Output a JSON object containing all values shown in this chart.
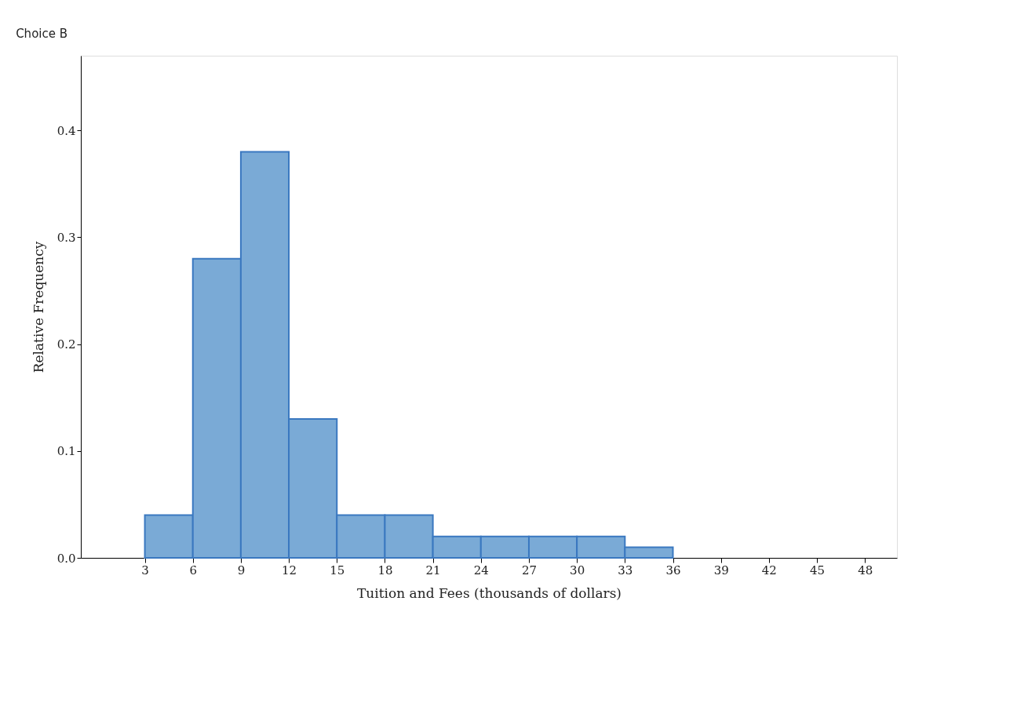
{
  "chart_data": {
    "type": "histogram",
    "title": "Choice B",
    "xlabel": "Tuition and Fees (thousands of dollars)",
    "ylabel": "Relative Frequency",
    "bins": [
      3,
      6,
      9,
      12,
      15,
      18,
      21,
      24,
      27,
      30,
      33,
      36
    ],
    "values": [
      0.04,
      0.28,
      0.38,
      0.13,
      0.04,
      0.04,
      0.02,
      0.02,
      0.02,
      0.02,
      0.01
    ],
    "color": "#7aaad6",
    "xlim": [
      -1,
      50
    ],
    "xticks": [
      3,
      6,
      9,
      12,
      15,
      18,
      21,
      24,
      27,
      30,
      33,
      36,
      39,
      42,
      45,
      48
    ],
    "ylim": [
      0,
      0.47
    ],
    "yticks": [
      {
        "value": 0,
        "label": "0.0"
      },
      0.1,
      0.2,
      0.3,
      0.4
    ],
    "grid": false
  }
}
